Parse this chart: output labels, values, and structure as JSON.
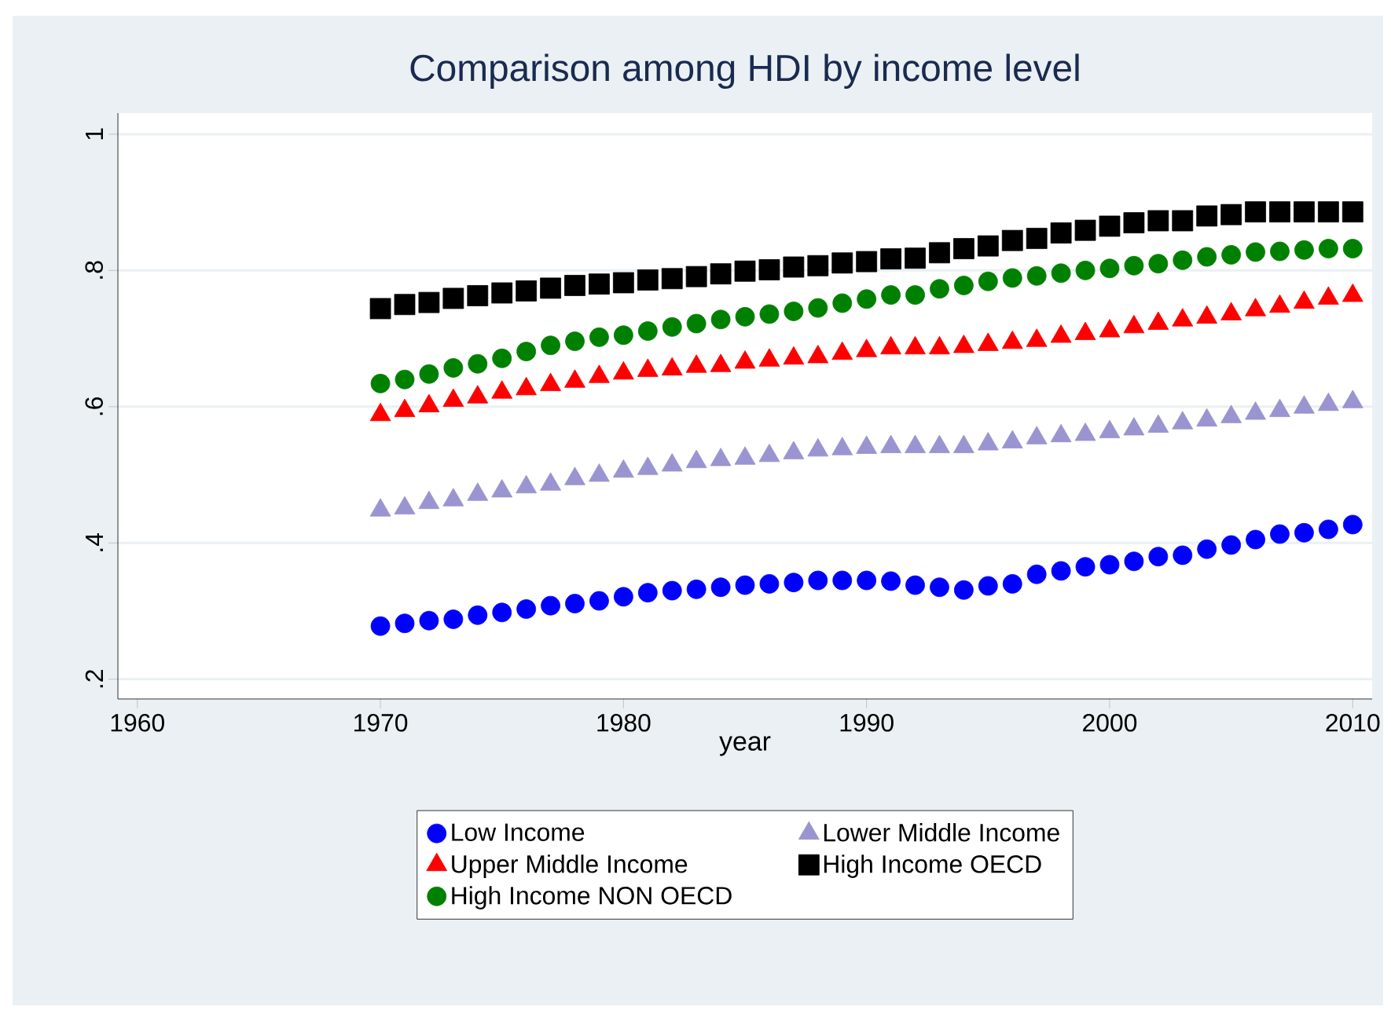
{
  "chart_data": {
    "type": "scatter",
    "title": "Comparison among HDI by income level",
    "xlabel": "year",
    "x": [
      1970,
      1971,
      1972,
      1973,
      1974,
      1975,
      1976,
      1977,
      1978,
      1979,
      1980,
      1981,
      1982,
      1983,
      1984,
      1985,
      1986,
      1987,
      1988,
      1989,
      1990,
      1991,
      1992,
      1993,
      1994,
      1995,
      1996,
      1997,
      1998,
      1999,
      2000,
      2001,
      2002,
      2003,
      2004,
      2005,
      2006,
      2007,
      2008,
      2009,
      2010
    ],
    "series": [
      {
        "name": "Low Income",
        "color": "#0000ff",
        "marker": "circle",
        "values": [
          0.278,
          0.282,
          0.286,
          0.288,
          0.294,
          0.298,
          0.303,
          0.308,
          0.311,
          0.315,
          0.321,
          0.327,
          0.33,
          0.332,
          0.335,
          0.338,
          0.34,
          0.342,
          0.345,
          0.345,
          0.345,
          0.344,
          0.338,
          0.335,
          0.331,
          0.337,
          0.34,
          0.354,
          0.359,
          0.365,
          0.368,
          0.373,
          0.38,
          0.382,
          0.391,
          0.397,
          0.405,
          0.413,
          0.415,
          0.42,
          0.427
        ]
      },
      {
        "name": "Lower Middle Income",
        "color": "#9a94d0",
        "marker": "triangle",
        "values": [
          0.448,
          0.451,
          0.459,
          0.463,
          0.471,
          0.476,
          0.482,
          0.486,
          0.494,
          0.499,
          0.505,
          0.509,
          0.514,
          0.519,
          0.522,
          0.524,
          0.528,
          0.532,
          0.536,
          0.538,
          0.54,
          0.541,
          0.541,
          0.541,
          0.541,
          0.545,
          0.548,
          0.554,
          0.557,
          0.559,
          0.563,
          0.567,
          0.571,
          0.576,
          0.58,
          0.585,
          0.59,
          0.594,
          0.599,
          0.603,
          0.607
        ]
      },
      {
        "name": "Upper Middle Income",
        "color": "#ff0000",
        "marker": "triangle",
        "values": [
          0.588,
          0.594,
          0.601,
          0.609,
          0.614,
          0.621,
          0.626,
          0.632,
          0.637,
          0.644,
          0.649,
          0.653,
          0.655,
          0.659,
          0.66,
          0.665,
          0.668,
          0.671,
          0.673,
          0.678,
          0.682,
          0.686,
          0.686,
          0.686,
          0.688,
          0.691,
          0.694,
          0.697,
          0.703,
          0.707,
          0.711,
          0.717,
          0.722,
          0.727,
          0.731,
          0.736,
          0.742,
          0.747,
          0.753,
          0.759,
          0.763
        ]
      },
      {
        "name": "High Income OECD",
        "color": "#000000",
        "marker": "square",
        "values": [
          0.744,
          0.75,
          0.753,
          0.759,
          0.763,
          0.767,
          0.77,
          0.774,
          0.778,
          0.78,
          0.782,
          0.786,
          0.788,
          0.791,
          0.795,
          0.799,
          0.801,
          0.805,
          0.807,
          0.811,
          0.813,
          0.817,
          0.818,
          0.826,
          0.832,
          0.836,
          0.844,
          0.847,
          0.855,
          0.859,
          0.865,
          0.87,
          0.873,
          0.873,
          0.88,
          0.882,
          0.886,
          0.886,
          0.886,
          0.886,
          0.886
        ]
      },
      {
        "name": "High Income NON OECD",
        "color": "#008000",
        "marker": "circle",
        "values": [
          0.634,
          0.64,
          0.648,
          0.657,
          0.663,
          0.671,
          0.681,
          0.69,
          0.696,
          0.702,
          0.705,
          0.711,
          0.717,
          0.722,
          0.728,
          0.732,
          0.736,
          0.74,
          0.745,
          0.752,
          0.758,
          0.764,
          0.764,
          0.773,
          0.778,
          0.784,
          0.789,
          0.792,
          0.796,
          0.8,
          0.803,
          0.807,
          0.81,
          0.815,
          0.82,
          0.823,
          0.827,
          0.828,
          0.83,
          0.832,
          0.832
        ]
      }
    ],
    "xlim": [
      1959.2,
      2010.8
    ],
    "xticks": [
      1960,
      1970,
      1980,
      1990,
      2000,
      2010
    ],
    "ylim": [
      0.171,
      1.031
    ],
    "yticks": [
      {
        "value": 0.2,
        "label": ".2"
      },
      {
        "value": 0.4,
        "label": ".4"
      },
      {
        "value": 0.6,
        "label": ".6"
      },
      {
        "value": 0.8,
        "label": ".8"
      },
      1
    ],
    "grid": "y",
    "legend": "bottom"
  }
}
